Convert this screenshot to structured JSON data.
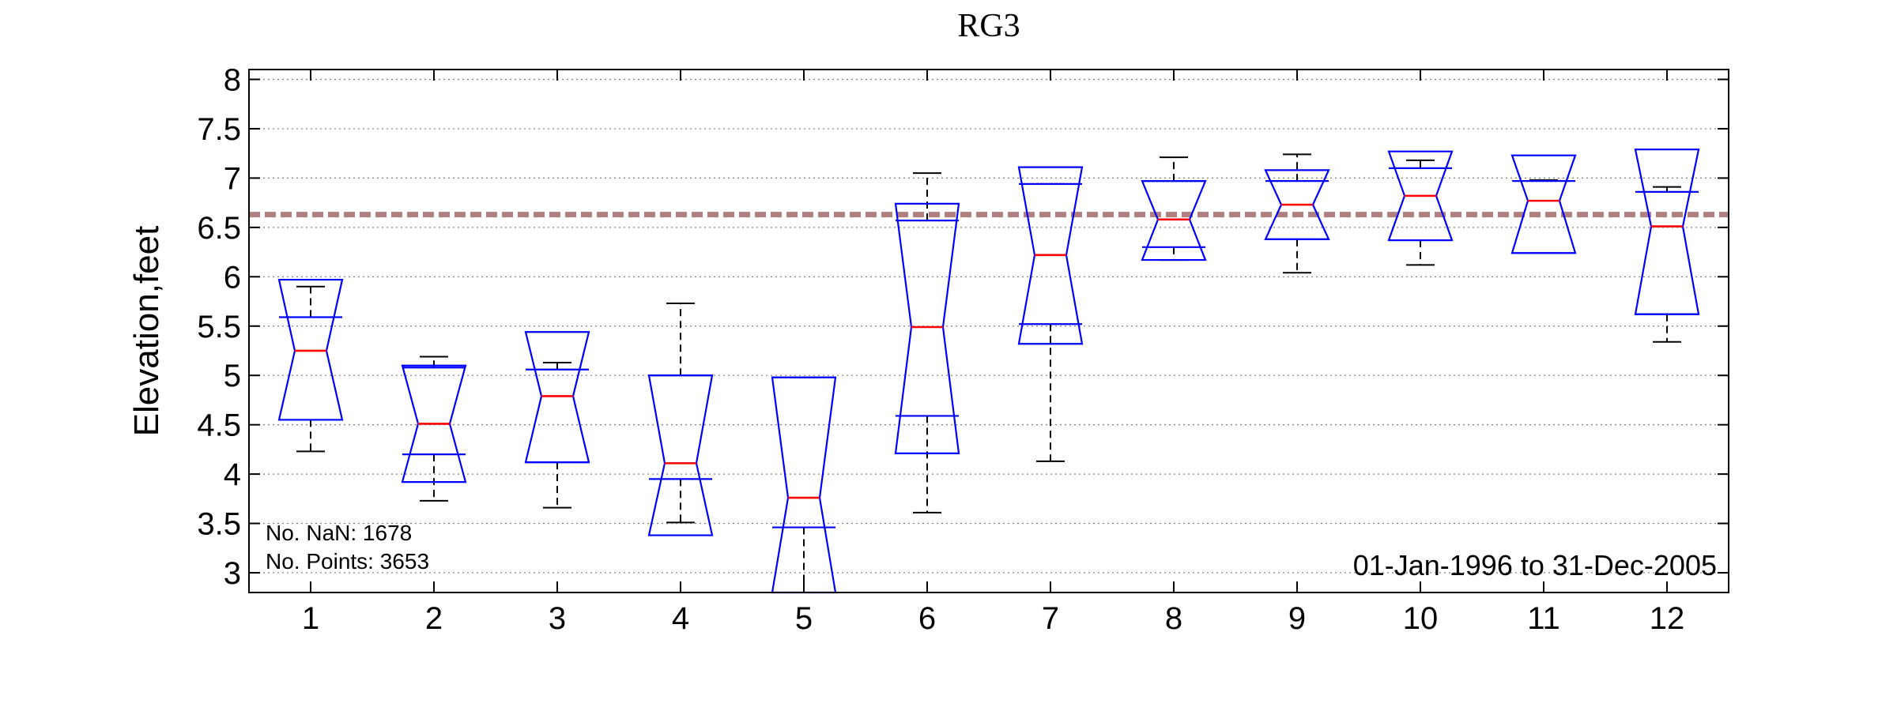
{
  "chart_data": {
    "type": "boxplot",
    "title": "RG3",
    "ylabel": "Elevation,feet",
    "xlabel": "",
    "ylim": [
      2.8,
      8.1
    ],
    "yticks": [
      3,
      3.5,
      4,
      4.5,
      5,
      5.5,
      6,
      6.5,
      7,
      7.5,
      8
    ],
    "ytick_labels": [
      "3",
      "3.5",
      "4",
      "4.5",
      "5",
      "5.5",
      "6",
      "6.5",
      "7",
      "7.5",
      "8"
    ],
    "grid": true,
    "notched": true,
    "reference_line": 6.63,
    "categories": [
      "1",
      "2",
      "3",
      "4",
      "5",
      "6",
      "7",
      "8",
      "9",
      "10",
      "11",
      "12"
    ],
    "boxes": [
      {
        "month": "1",
        "whisker_low": 4.23,
        "q1": 4.55,
        "median": 5.25,
        "q3": 5.59,
        "whisker_high": 5.9,
        "notch_low": 4.55,
        "notch_high": 5.97
      },
      {
        "month": "2",
        "whisker_low": 3.73,
        "q1": 4.2,
        "median": 4.51,
        "q3": 5.08,
        "whisker_high": 5.19,
        "notch_low": 3.92,
        "notch_high": 5.1
      },
      {
        "month": "3",
        "whisker_low": 3.66,
        "q1": 4.12,
        "median": 4.79,
        "q3": 5.06,
        "whisker_high": 5.13,
        "notch_low": 4.12,
        "notch_high": 5.44
      },
      {
        "month": "4",
        "whisker_low": 3.51,
        "q1": 3.95,
        "median": 4.11,
        "q3": 5.0,
        "whisker_high": 5.73,
        "notch_low": 3.38,
        "notch_high": 5.0
      },
      {
        "month": "5",
        "whisker_low": 2.8,
        "q1": 3.46,
        "median": 3.76,
        "q3": 4.98,
        "whisker_high": 4.98,
        "notch_low": 2.8,
        "notch_high": 4.98
      },
      {
        "month": "6",
        "whisker_low": 3.61,
        "q1": 4.59,
        "median": 5.49,
        "q3": 6.57,
        "whisker_high": 7.05,
        "notch_low": 4.21,
        "notch_high": 6.74
      },
      {
        "month": "7",
        "whisker_low": 4.13,
        "q1": 5.52,
        "median": 6.22,
        "q3": 6.94,
        "whisker_high": 6.94,
        "notch_low": 5.32,
        "notch_high": 7.11
      },
      {
        "month": "8",
        "whisker_low": 6.17,
        "q1": 6.3,
        "median": 6.58,
        "q3": 6.97,
        "whisker_high": 7.21,
        "notch_low": 6.17,
        "notch_high": 6.97
      },
      {
        "month": "9",
        "whisker_low": 6.04,
        "q1": 6.38,
        "median": 6.73,
        "q3": 6.97,
        "whisker_high": 7.24,
        "notch_low": 6.38,
        "notch_high": 7.08
      },
      {
        "month": "10",
        "whisker_low": 6.12,
        "q1": 6.37,
        "median": 6.82,
        "q3": 7.1,
        "whisker_high": 7.18,
        "notch_low": 6.37,
        "notch_high": 7.27
      },
      {
        "month": "11",
        "whisker_low": 6.24,
        "q1": 6.24,
        "median": 6.77,
        "q3": 6.97,
        "whisker_high": 6.98,
        "notch_low": 6.24,
        "notch_high": 7.23
      },
      {
        "month": "12",
        "whisker_low": 5.34,
        "q1": 5.62,
        "median": 6.51,
        "q3": 6.86,
        "whisker_high": 6.91,
        "notch_low": 5.62,
        "notch_high": 7.29
      }
    ],
    "annotations": {
      "nan_count": "No. NaN: 1678",
      "points_count": "No. Points: 3653",
      "date_range": "01-Jan-1996 to 31-Dec-2005"
    },
    "colors": {
      "box": "#0000ff",
      "median": "#ff0000",
      "whisker": "#000000",
      "reference_line": "#b08080",
      "grid": "#808080"
    }
  }
}
